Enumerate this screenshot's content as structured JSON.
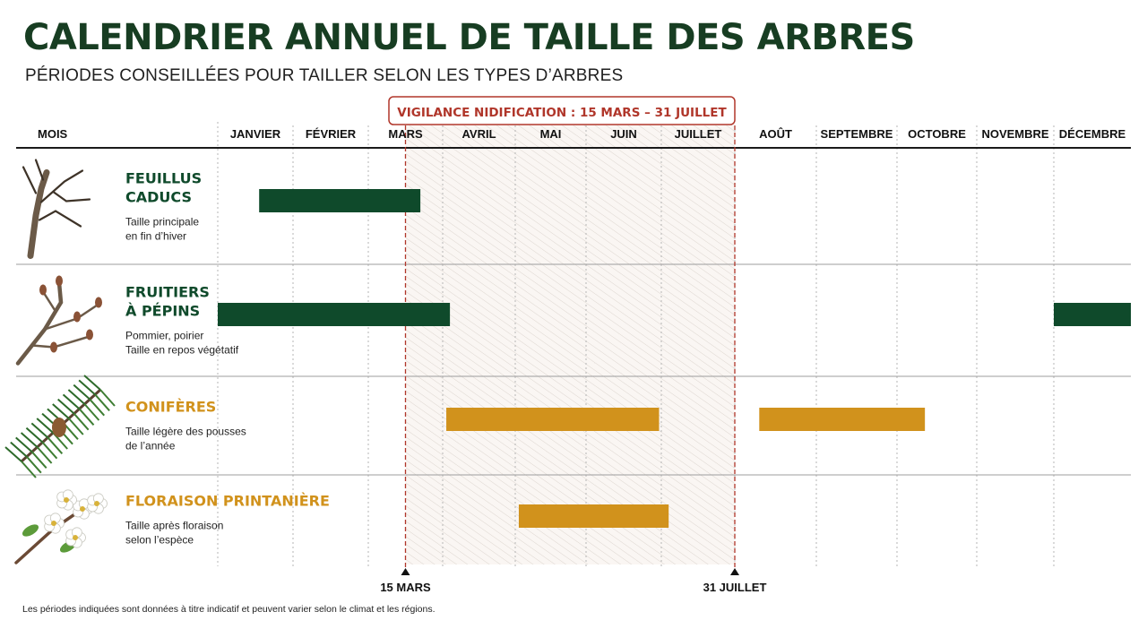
{
  "title": "CALENDRIER ANNUEL DE TAILLE DES ARBRES",
  "subtitle": "PÉRIODES CONSEILLÉES POUR TAILLER SELON LES TYPES D’ARBRES",
  "footnote": "Les périodes indiquées sont données à titre indicatif et peuvent varier selon le climat et les régions.",
  "colors": {
    "green": "#0f4a2b",
    "gold": "#d1921c",
    "red": "#b0362a",
    "title": "#173d22"
  },
  "chart_data": {
    "type": "gantt",
    "header_label": "MOIS",
    "months": [
      "JANVIER",
      "FÉVRIER",
      "MARS",
      "AVRIL",
      "MAI",
      "JUIN",
      "JUILLET",
      "AOÛT",
      "SEPTEMBRE",
      "OCTOBRE",
      "NOVEMBRE",
      "DÉCEMBRE"
    ],
    "vigilance": {
      "label": "VIGILANCE NIDIFICATION : 15 MARS – 31 JUILLET",
      "start_month": 2.5,
      "end_month": 7.0,
      "start_label": "15 MARS",
      "end_label": "31 JUILLET"
    },
    "categories": [
      {
        "title_lines": [
          "FEUILLUS",
          "CADUCS"
        ],
        "sub_lines": [
          "Taille principale",
          "en fin d’hiver"
        ],
        "color": "#0f4a2b",
        "icon": "bare-branch-icon",
        "periods": [
          [
            0.55,
            2.7
          ]
        ]
      },
      {
        "title_lines": [
          "FRUITIERS",
          "À PÉPINS"
        ],
        "sub_lines": [
          "Pommier, poirier",
          "Taille en repos végétatif"
        ],
        "color": "#0f4a2b",
        "icon": "budding-branch-icon",
        "periods": [
          [
            0.0,
            3.1
          ],
          [
            11.0,
            12.0
          ]
        ]
      },
      {
        "title_lines": [
          "CONIFÈRES"
        ],
        "sub_lines": [
          "Taille légère des pousses",
          "de l’année"
        ],
        "color": "#d1921c",
        "icon": "conifer-branch-icon",
        "periods": [
          [
            3.05,
            5.97
          ],
          [
            7.3,
            9.35
          ]
        ]
      },
      {
        "title_lines": [
          "FLORAISON PRINTANIÈRE"
        ],
        "sub_lines": [
          "Taille après floraison",
          "selon l’espèce"
        ],
        "color": "#d1921c",
        "icon": "blossom-branch-icon",
        "periods": [
          [
            4.05,
            6.1
          ]
        ]
      }
    ]
  }
}
